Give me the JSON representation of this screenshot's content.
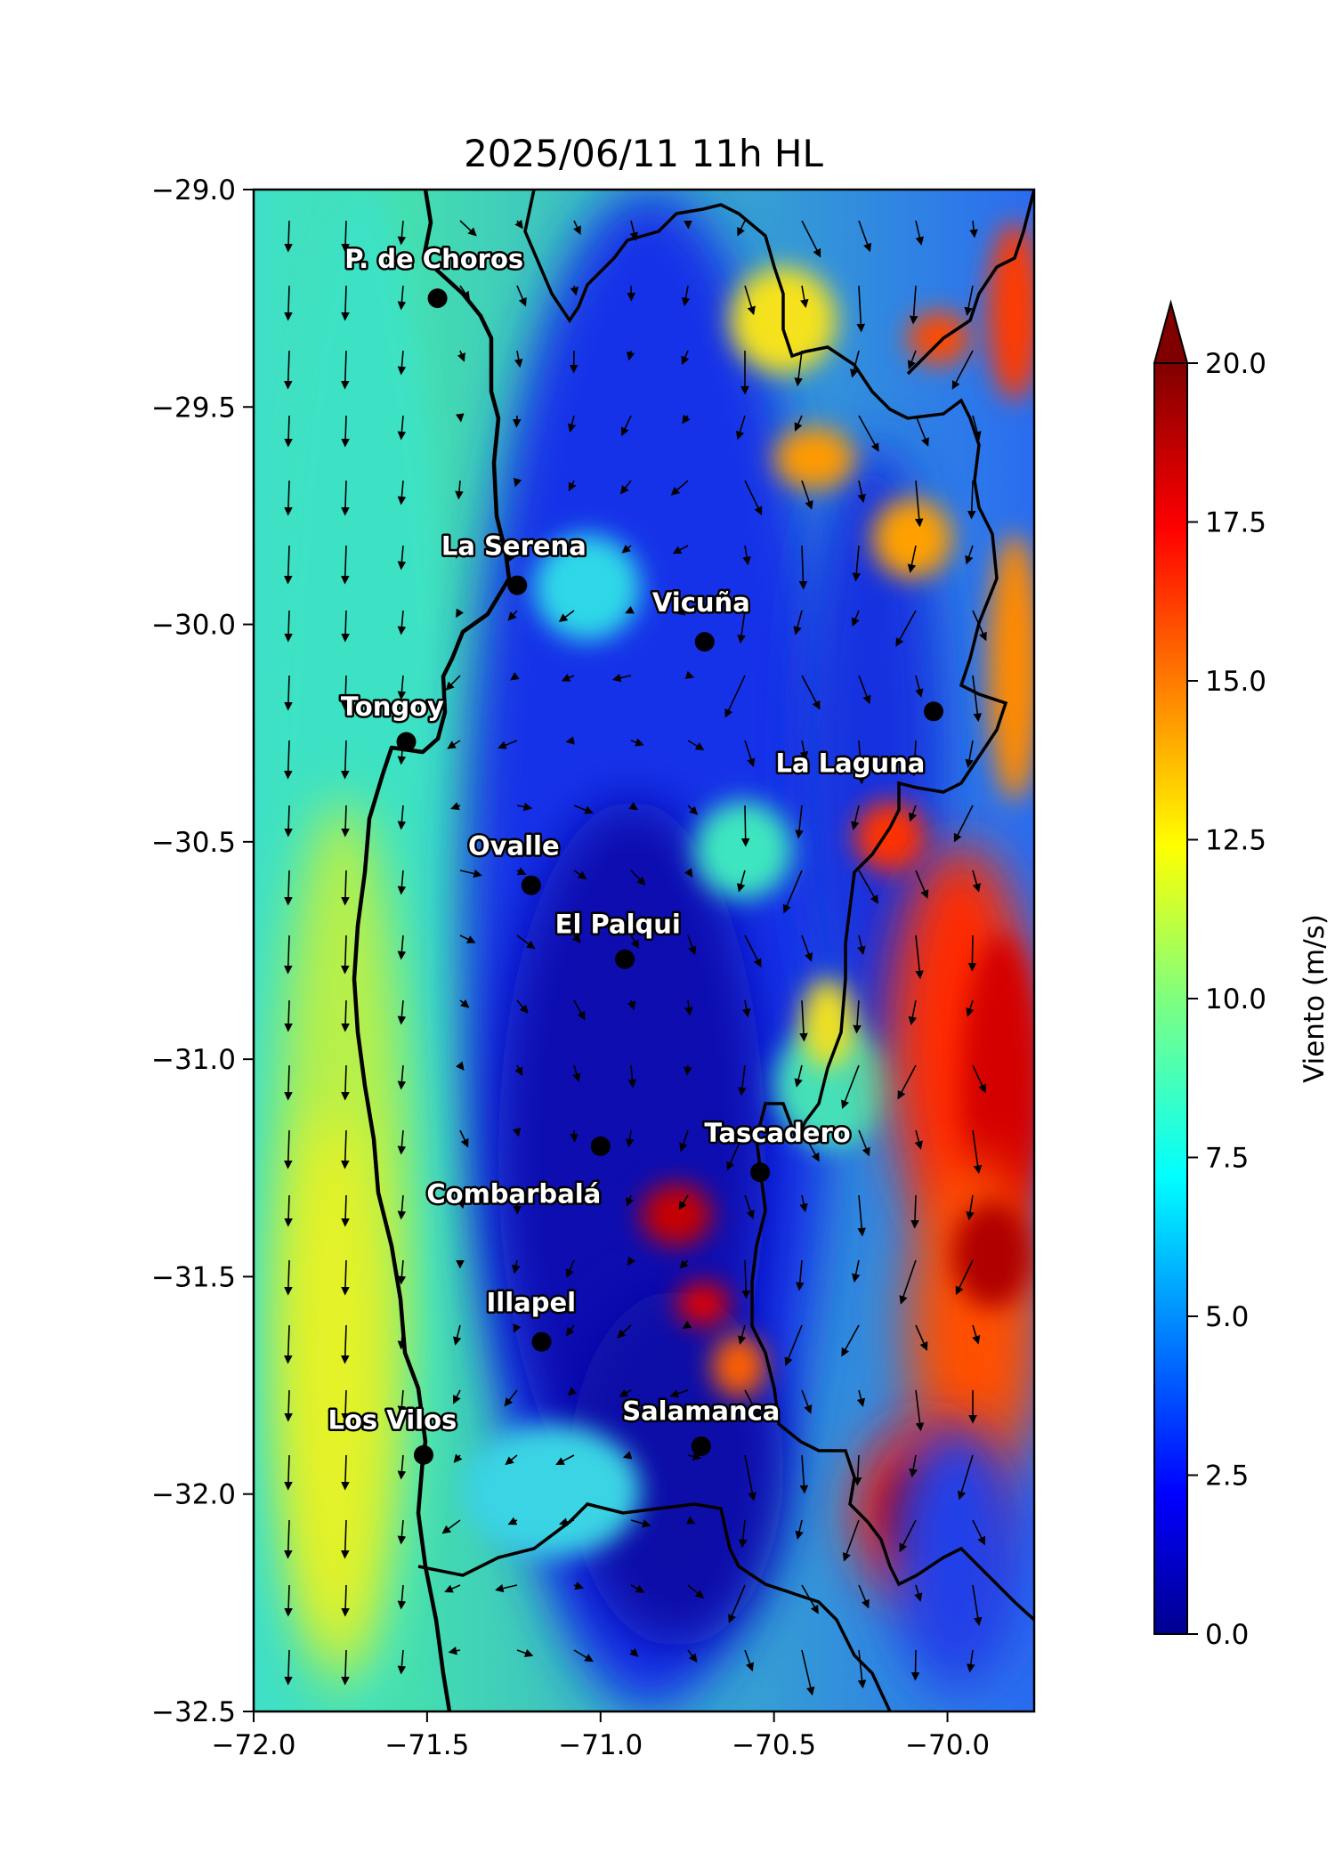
{
  "title": "2025/06/11 11h HL",
  "map": {
    "lon_range": [
      -72.0,
      -69.75
    ],
    "lat_range": [
      -32.5,
      -29.0
    ],
    "x_ticks": [
      {
        "value": -72.0,
        "label": "−72.0"
      },
      {
        "value": -71.5,
        "label": "−71.5"
      },
      {
        "value": -71.0,
        "label": "−71.0"
      },
      {
        "value": -70.5,
        "label": "−70.5"
      },
      {
        "value": -70.0,
        "label": "−70.0"
      }
    ],
    "y_ticks": [
      {
        "value": -29.0,
        "label": "−29.0"
      },
      {
        "value": -29.5,
        "label": "−29.5"
      },
      {
        "value": -30.0,
        "label": "−30.0"
      },
      {
        "value": -30.5,
        "label": "−30.5"
      },
      {
        "value": -31.0,
        "label": "−31.0"
      },
      {
        "value": -31.5,
        "label": "−31.5"
      },
      {
        "value": -32.0,
        "label": "−32.0"
      },
      {
        "value": -32.5,
        "label": "−32.5"
      }
    ],
    "cities": [
      {
        "name": "P. de Choros",
        "lon": -71.47,
        "lat": -29.25,
        "label_lon": -71.48,
        "label_lat": -29.18
      },
      {
        "name": "La Serena",
        "lon": -71.24,
        "lat": -29.91,
        "label_lon": -71.25,
        "label_lat": -29.84
      },
      {
        "name": "Vicuña",
        "lon": -70.7,
        "lat": -30.04,
        "label_lon": -70.71,
        "label_lat": -29.97
      },
      {
        "name": "Tongoy",
        "lon": -71.56,
        "lat": -30.27,
        "label_lon": -71.6,
        "label_lat": -30.21
      },
      {
        "name": "La Laguna",
        "lon": -70.04,
        "lat": -30.2,
        "label_lon": -70.28,
        "label_lat": -30.34
      },
      {
        "name": "Ovalle",
        "lon": -71.2,
        "lat": -30.6,
        "label_lon": -71.25,
        "label_lat": -30.53
      },
      {
        "name": "El Palqui",
        "lon": -70.93,
        "lat": -30.77,
        "label_lon": -70.95,
        "label_lat": -30.71
      },
      {
        "name": "Combarbalá",
        "lon": -71.0,
        "lat": -31.2,
        "label_lon": -71.25,
        "label_lat": -31.33
      },
      {
        "name": "Tascadero",
        "lon": -70.54,
        "lat": -31.26,
        "label_lon": -70.49,
        "label_lat": -31.19
      },
      {
        "name": "Illapel",
        "lon": -71.17,
        "lat": -31.65,
        "label_lon": -71.2,
        "label_lat": -31.58
      },
      {
        "name": "Los Vilos",
        "lon": -71.51,
        "lat": -31.91,
        "label_lon": -71.6,
        "label_lat": -31.85
      },
      {
        "name": "Salamanca",
        "lon": -70.71,
        "lat": -31.89,
        "label_lon": -70.71,
        "label_lat": -31.83
      }
    ]
  },
  "colorbar": {
    "label": "Viento (m/s)",
    "min": 0.0,
    "max": 20.0,
    "extend": "max",
    "colormap": "jet",
    "ticks": [
      {
        "value": 0.0,
        "label": "0.0"
      },
      {
        "value": 2.5,
        "label": "2.5"
      },
      {
        "value": 5.0,
        "label": "5.0"
      },
      {
        "value": 7.5,
        "label": "7.5"
      },
      {
        "value": 10.0,
        "label": "10.0"
      },
      {
        "value": 12.5,
        "label": "12.5"
      },
      {
        "value": 15.0,
        "label": "15.0"
      },
      {
        "value": 17.5,
        "label": "17.5"
      },
      {
        "value": 20.0,
        "label": "20.0"
      }
    ],
    "extend_color": "#800000"
  },
  "colors": {
    "coastline": "#000000",
    "city_marker": "#000000",
    "arrow": "#000000"
  }
}
